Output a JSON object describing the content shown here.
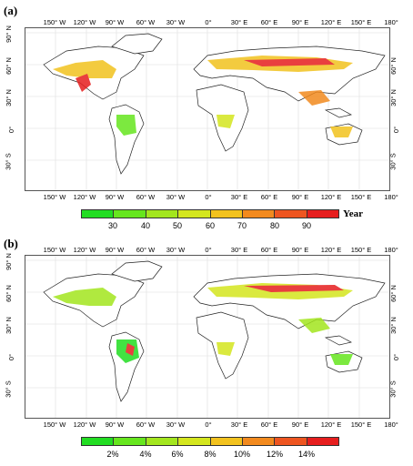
{
  "panels": [
    {
      "label": "(a)",
      "lon_labels": [
        "150° W",
        "120° W",
        "90° W",
        "60° W",
        "30° W",
        "0°",
        "30° E",
        "60° E",
        "90° E",
        "120° E",
        "150° E",
        "180°"
      ],
      "lat_labels": [
        "90° N",
        "60° N",
        "30° N",
        "0°",
        "30° S"
      ],
      "legend": {
        "colors": [
          "#22dd22",
          "#66e61e",
          "#a3e61e",
          "#d4e61e",
          "#f2c21e",
          "#f28a1e",
          "#ee5520",
          "#e61e1e"
        ],
        "ticks": [
          "30",
          "40",
          "50",
          "60",
          "70",
          "80",
          "90"
        ],
        "unit": "Year"
      }
    },
    {
      "label": "(b)",
      "lon_labels": [
        "150° W",
        "120° W",
        "90° W",
        "60° W",
        "30° W",
        "0°",
        "30° E",
        "60° E",
        "90° E",
        "120° E",
        "150° E",
        "180°"
      ],
      "lat_labels": [
        "90° N",
        "60° N",
        "30° N",
        "0°",
        "30° S"
      ],
      "legend": {
        "colors": [
          "#22dd22",
          "#66e61e",
          "#a3e61e",
          "#d4e61e",
          "#f2c21e",
          "#f28a1e",
          "#ee5520",
          "#e61e1e"
        ],
        "ticks": [
          "2%",
          "4%",
          "6%",
          "8%",
          "10%",
          "12%",
          "14%"
        ],
        "unit": ""
      }
    }
  ]
}
